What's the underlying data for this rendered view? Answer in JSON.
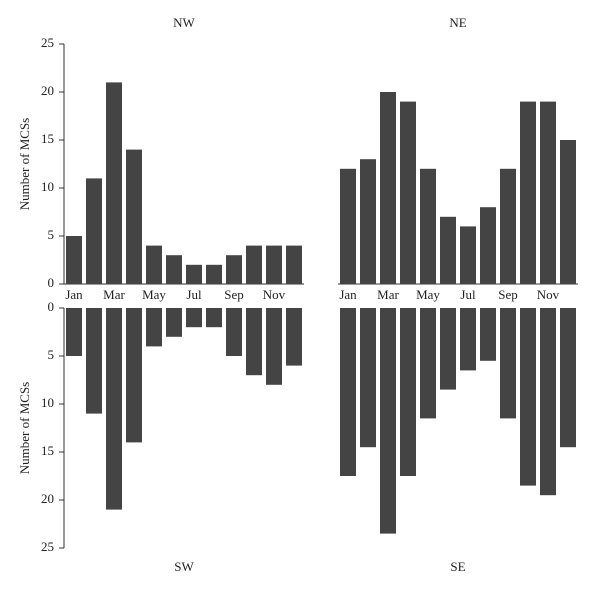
{
  "chart_data": [
    {
      "type": "bar",
      "title": "NW",
      "ylabel": "Number of MCSs",
      "color": "#444444",
      "categories": [
        "Jan",
        null,
        "Mar",
        null,
        "May",
        null,
        "Jul",
        null,
        "Sep",
        null,
        "Nov",
        null
      ],
      "values": [
        5,
        11,
        21,
        14,
        4,
        3,
        2,
        2,
        3,
        4,
        4,
        4
      ],
      "ylim": [
        0,
        25
      ],
      "yticks": [
        0,
        5,
        10,
        15,
        20,
        25
      ]
    },
    {
      "type": "bar",
      "title": "NE",
      "color": "#444444",
      "categories": [
        "Jan",
        null,
        "Mar",
        null,
        "May",
        null,
        "Jul",
        null,
        "Sep",
        null,
        "Nov",
        null
      ],
      "values": [
        12,
        13,
        20,
        19,
        12,
        7,
        6,
        8,
        12,
        19,
        19,
        15
      ],
      "ylim": [
        0,
        25
      ]
    },
    {
      "type": "bar",
      "title": "SW",
      "ylabel": "Number of MCSs",
      "color": "#444444",
      "inverted": true,
      "values": [
        5,
        11,
        21,
        14,
        4,
        3,
        2,
        2,
        5,
        7,
        8,
        6
      ],
      "ylim": [
        0,
        25
      ],
      "yticks": [
        0,
        5,
        10,
        15,
        20,
        25
      ]
    },
    {
      "type": "bar",
      "title": "SE",
      "color": "#444444",
      "inverted": true,
      "values": [
        17.5,
        14.5,
        23.5,
        17.5,
        11.5,
        8.5,
        6.5,
        5.5,
        11.5,
        18.5,
        19.5,
        14.5
      ],
      "ylim": [
        0,
        25
      ]
    }
  ]
}
